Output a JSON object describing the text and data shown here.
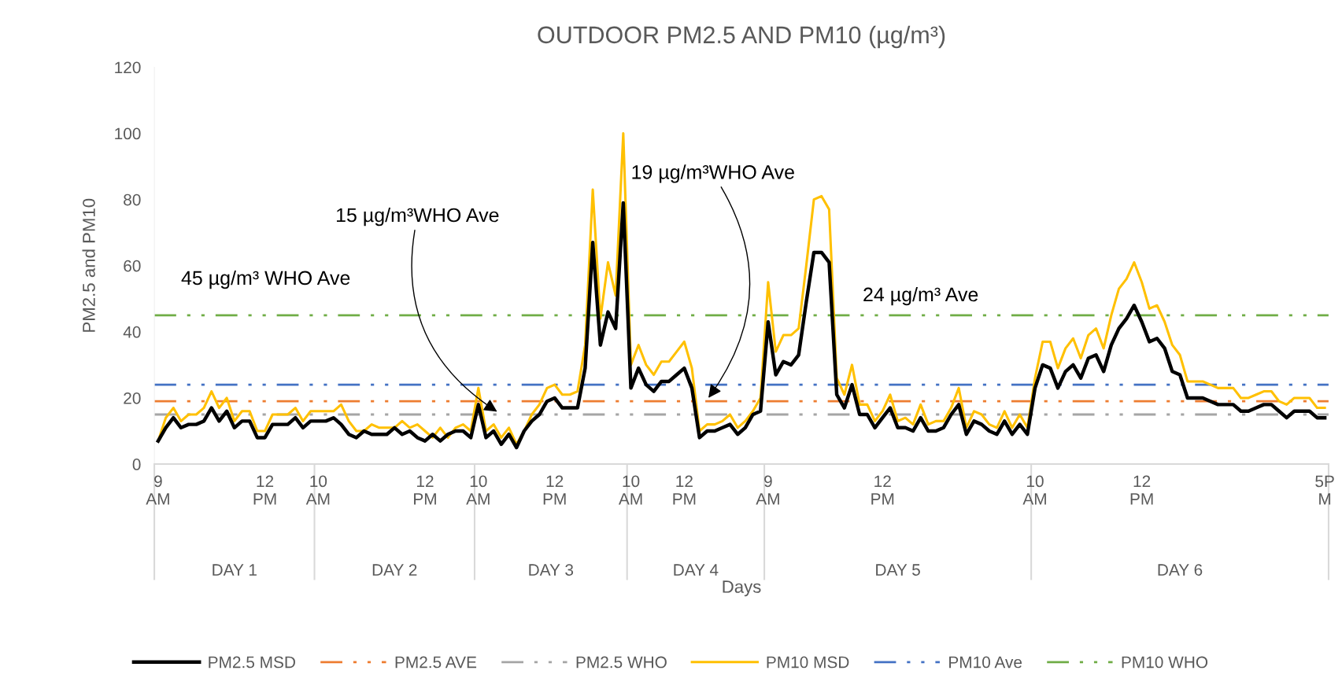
{
  "chart_data": {
    "type": "line",
    "title": "OUTDOOR PM2.5 AND PM10 (µg/m³)",
    "xlabel": "Days",
    "ylabel": "PM2.5 and PM10",
    "categories": [
      "9\nAM",
      null,
      null,
      null,
      null,
      null,
      null,
      null,
      null,
      null,
      null,
      null,
      null,
      null,
      "12\nPM",
      null,
      null,
      null,
      null,
      null,
      null,
      "10\nAM",
      null,
      null,
      null,
      null,
      null,
      null,
      null,
      null,
      null,
      null,
      null,
      null,
      null,
      "12\nPM",
      null,
      null,
      null,
      null,
      null,
      null,
      "10\nAM",
      null,
      null,
      null,
      null,
      null,
      null,
      null,
      null,
      null,
      "12\nPM",
      null,
      null,
      null,
      null,
      null,
      null,
      null,
      null,
      null,
      "10\nAM",
      null,
      null,
      null,
      null,
      null,
      null,
      "12\nPM",
      null,
      null,
      null,
      null,
      null,
      null,
      null,
      null,
      null,
      null,
      "9\nAM",
      null,
      null,
      null,
      null,
      null,
      null,
      null,
      null,
      null,
      null,
      null,
      null,
      null,
      null,
      "12\nPM",
      null,
      null,
      null,
      null,
      null,
      null,
      null,
      null,
      null,
      null,
      null,
      null,
      null,
      null,
      null,
      null,
      null,
      null,
      null,
      "10\nAM",
      null,
      null,
      null,
      null,
      null,
      null,
      null,
      null,
      null,
      null,
      null,
      null,
      null,
      "12\nPM",
      null,
      null,
      null,
      null,
      null,
      null,
      null,
      null,
      null,
      null,
      null,
      null,
      null,
      null,
      null,
      null,
      null,
      null,
      null,
      null,
      null,
      null,
      null,
      "5P\nM"
    ],
    "series": [
      {
        "name": "PM2.5 MSD",
        "color": "#000000",
        "values": [
          7,
          11,
          14,
          11,
          12,
          12,
          13,
          17,
          13,
          16,
          11,
          13,
          13,
          8,
          8,
          12,
          12,
          12,
          14,
          11,
          13,
          13,
          13,
          14,
          12,
          9,
          8,
          10,
          9,
          9,
          9,
          11,
          9,
          10,
          8,
          7,
          9,
          7,
          9,
          10,
          10,
          8,
          18,
          8,
          10,
          6,
          9,
          5,
          10,
          13,
          15,
          19,
          20,
          17,
          17,
          17,
          29,
          67,
          36,
          46,
          41,
          79,
          23,
          29,
          24,
          22,
          25,
          25,
          27,
          29,
          23,
          8,
          10,
          10,
          11,
          12,
          9,
          11,
          15,
          16,
          43,
          27,
          31,
          30,
          33,
          49,
          64,
          64,
          61,
          21,
          17,
          24,
          15,
          15,
          11,
          14,
          17,
          11,
          11,
          10,
          14,
          10,
          10,
          11,
          15,
          18,
          9,
          13,
          12,
          10,
          9,
          13,
          9,
          12,
          9,
          23,
          30,
          29,
          23,
          28,
          30,
          26,
          32,
          33,
          28,
          36,
          41,
          44,
          48,
          43,
          37,
          38,
          35,
          28,
          27,
          20,
          20,
          20,
          19,
          18,
          18,
          18,
          16,
          16,
          17,
          18,
          18,
          16,
          14,
          16,
          16,
          16,
          14,
          14
        ]
      },
      {
        "name": "PM10 MSD",
        "color": "#ffc000",
        "values": [
          7,
          14,
          17,
          13,
          15,
          15,
          17,
          22,
          17,
          20,
          13,
          16,
          16,
          10,
          10,
          15,
          15,
          15,
          17,
          13,
          16,
          16,
          16,
          16,
          18,
          13,
          10,
          10,
          12,
          11,
          11,
          11,
          13,
          11,
          12,
          10,
          8,
          11,
          8,
          11,
          12,
          10,
          23,
          10,
          12,
          8,
          11,
          6,
          10,
          15,
          18,
          23,
          24,
          21,
          21,
          22,
          36,
          83,
          44,
          61,
          51,
          100,
          30,
          36,
          30,
          27,
          31,
          31,
          34,
          37,
          29,
          10,
          12,
          12,
          13,
          15,
          11,
          13,
          16,
          20,
          55,
          34,
          39,
          39,
          41,
          60,
          80,
          81,
          77,
          26,
          21,
          30,
          18,
          18,
          13,
          16,
          21,
          13,
          14,
          12,
          18,
          12,
          13,
          13,
          17,
          23,
          11,
          16,
          15,
          12,
          11,
          16,
          11,
          15,
          11,
          26,
          37,
          37,
          29,
          35,
          38,
          32,
          39,
          41,
          35,
          45,
          53,
          56,
          61,
          55,
          47,
          48,
          43,
          36,
          33,
          25,
          25,
          25,
          24,
          23,
          23,
          23,
          20,
          20,
          21,
          22,
          22,
          19,
          18,
          20,
          20,
          20,
          17,
          17
        ]
      }
    ],
    "ref_lines": [
      {
        "axis": "y",
        "value": 19,
        "label": "PM2.5 AVE",
        "color": "#ed7d31",
        "line_style": "dashed"
      },
      {
        "axis": "y",
        "value": 15,
        "label": "PM2.5 WHO",
        "color": "#a5a5a5",
        "line_style": "dashed"
      },
      {
        "axis": "y",
        "value": 24,
        "label": "PM10 Ave",
        "color": "#4472c4",
        "line_style": "dashed"
      },
      {
        "axis": "y",
        "value": 45,
        "label": "PM10 WHO",
        "color": "#70ad47",
        "line_style": "dashed"
      }
    ],
    "ylim": [
      0,
      120
    ],
    "yticks": [
      0,
      20,
      40,
      60,
      80,
      100,
      120
    ],
    "annotations": [
      "DAY 1",
      "DAY 2",
      "DAY 3",
      "DAY 4",
      "DAY 5",
      "DAY 6",
      "45 µg/m³ WHO Ave",
      "15 µg/m³WHO Ave",
      "19 µg/m³WHO Ave",
      "24 µg/m³ Ave"
    ],
    "grid": false,
    "legend": "bottom",
    "marker": "none",
    "line_style": "solid"
  }
}
